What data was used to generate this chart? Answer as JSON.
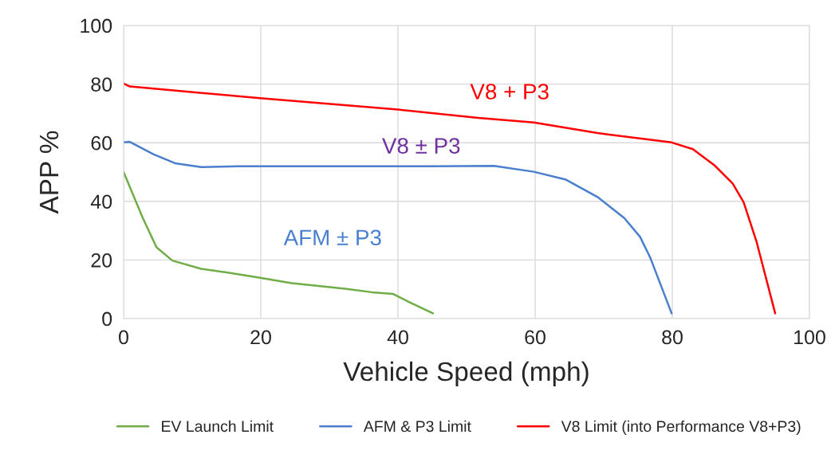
{
  "chart_data": {
    "type": "line",
    "xlabel": "Vehicle Speed (mph)",
    "ylabel": "APP %",
    "xlim": [
      0,
      100
    ],
    "xticks": [
      0,
      20,
      40,
      60,
      80,
      100
    ],
    "ylim": [
      0,
      100
    ],
    "yticks": [
      0,
      20,
      40,
      60,
      80,
      100
    ],
    "grid": true,
    "legend": "bottom",
    "marker": "none",
    "line_style": "solid",
    "series": [
      {
        "name": "EV Launch Limit",
        "color": "#70ad47",
        "x": [
          0,
          2.8,
          4.8,
          7.1,
          11.3,
          15.2,
          19.9,
          24.5,
          32.3,
          36.2,
          39.3,
          41.6,
          45.1
        ],
        "values": [
          50,
          34.3,
          24.3,
          19.8,
          17.0,
          15.7,
          13.9,
          12.1,
          10.2,
          9.0,
          8.4,
          5.7,
          1.8
        ]
      },
      {
        "name": "AFM & P3 Limit",
        "color": "#4a7fcf",
        "x": [
          0,
          0.9,
          4.4,
          7.5,
          11.3,
          16.7,
          30,
          45,
          54.0,
          59.8,
          64.5,
          69.1,
          73.0,
          75.3,
          76.8,
          79.9
        ],
        "values": [
          60.1,
          60.3,
          56.0,
          53.0,
          51.7,
          52,
          52,
          52,
          52.1,
          50.1,
          47.4,
          41.5,
          34.3,
          27.9,
          20.7,
          1.8
        ]
      },
      {
        "name": "V8 Limit (into Performance V8+P3)",
        "color": "#ff0000",
        "x": [
          0,
          0.9,
          19.9,
          40.0,
          51.7,
          59.8,
          69.1,
          79.9,
          83.0,
          86.1,
          88.8,
          90.4,
          92.3,
          95.0
        ],
        "values": [
          80.2,
          79.2,
          75.2,
          71.3,
          68.5,
          66.9,
          63.3,
          60.1,
          57.8,
          52.4,
          46.1,
          39.7,
          26.1,
          1.8
        ]
      }
    ],
    "annotations": [
      "V8 + P3",
      "V8 ± P3",
      "AFM ± P3"
    ]
  }
}
